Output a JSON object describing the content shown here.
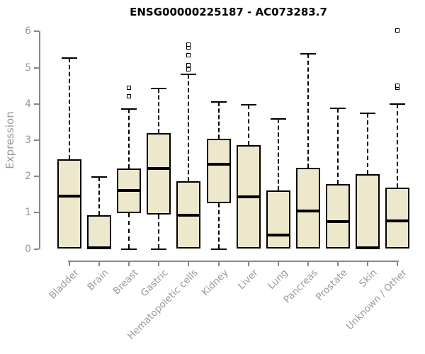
{
  "figure": {
    "title": "ENSG00000225187 - AC073283.7",
    "y_axis_label": "Expression"
  },
  "colors": {
    "box_fill": "#EDE8CC",
    "box_border": "#000000",
    "median": "#000000",
    "axis_line": "#888888",
    "tick_label": "#999999",
    "title": "#000000",
    "background": "#FFFFFF"
  },
  "chart_data": {
    "type": "boxplot",
    "title": "ENSG00000225187 - AC073283.7",
    "xlabel": "",
    "ylabel": "Expression",
    "ylim": [
      0,
      6
    ],
    "yticks": [
      0,
      1,
      2,
      3,
      4,
      5,
      6
    ],
    "grid": false,
    "legend": false,
    "categories": [
      "Bladder",
      "Brain",
      "Breast",
      "Gastric",
      "Hematopoietic cells",
      "Kidney",
      "Liver",
      "Lung",
      "Pancreas",
      "Prostate",
      "Skin",
      "Unknown / Other"
    ],
    "series": [
      {
        "name": "Bladder",
        "whisker_low": 0,
        "q1": 0,
        "median": 1.46,
        "q3": 2.47,
        "whisker_high": 5.27,
        "outliers": []
      },
      {
        "name": "Brain",
        "whisker_low": 0,
        "q1": 0,
        "median": 0.03,
        "q3": 0.92,
        "whisker_high": 1.98,
        "outliers": []
      },
      {
        "name": "Breast",
        "whisker_low": 0,
        "q1": 0.98,
        "median": 1.61,
        "q3": 2.22,
        "whisker_high": 3.85,
        "outliers": [
          4.2,
          4.45
        ]
      },
      {
        "name": "Gastric",
        "whisker_low": 0,
        "q1": 0.94,
        "median": 2.21,
        "q3": 3.2,
        "whisker_high": 4.43,
        "outliers": []
      },
      {
        "name": "Hematopoietic cells",
        "whisker_low": 0,
        "q1": 0,
        "median": 0.93,
        "q3": 1.87,
        "whisker_high": 4.82,
        "outliers": [
          4.96,
          5.06,
          5.35,
          5.55,
          5.63
        ]
      },
      {
        "name": "Kidney",
        "whisker_low": 0,
        "q1": 1.26,
        "median": 2.33,
        "q3": 3.03,
        "whisker_high": 4.06,
        "outliers": []
      },
      {
        "name": "Liver",
        "whisker_low": 0,
        "q1": 0,
        "median": 1.44,
        "q3": 2.87,
        "whisker_high": 3.97,
        "outliers": []
      },
      {
        "name": "Lung",
        "whisker_low": 0,
        "q1": 0,
        "median": 0.38,
        "q3": 1.62,
        "whisker_high": 3.58,
        "outliers": []
      },
      {
        "name": "Pancreas",
        "whisker_low": 0,
        "q1": 0,
        "median": 1.04,
        "q3": 2.24,
        "whisker_high": 5.39,
        "outliers": []
      },
      {
        "name": "Prostate",
        "whisker_low": 0,
        "q1": 0,
        "median": 0.76,
        "q3": 1.78,
        "whisker_high": 3.87,
        "outliers": []
      },
      {
        "name": "Skin",
        "whisker_low": 0,
        "q1": 0,
        "median": 0.03,
        "q3": 2.07,
        "whisker_high": 3.74,
        "outliers": []
      },
      {
        "name": "Unknown / Other",
        "whisker_low": 0,
        "q1": 0,
        "median": 0.78,
        "q3": 1.69,
        "whisker_high": 4.0,
        "outliers": [
          4.45,
          4.5,
          6.02
        ]
      }
    ]
  }
}
